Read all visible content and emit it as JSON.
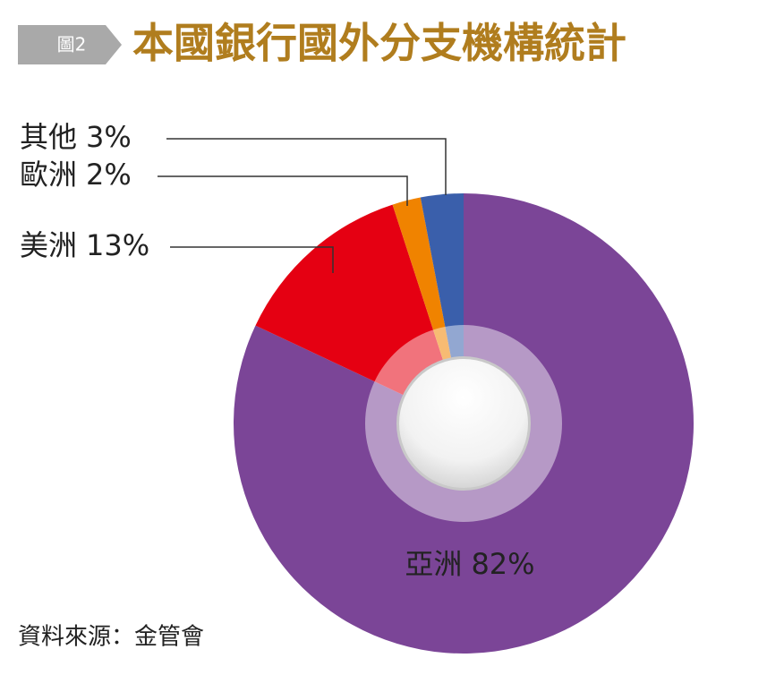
{
  "badge": "圖2",
  "source": "資料來源：金管會",
  "chart_data": {
    "type": "pie",
    "title": "本國銀行國外分支機構統計",
    "categories": [
      "亞洲",
      "美洲",
      "歐洲",
      "其他"
    ],
    "values": [
      82,
      13,
      2,
      3
    ],
    "value_labels": [
      "82%",
      "13%",
      "2%",
      "3%"
    ],
    "colors": [
      "#7b4597",
      "#e50012",
      "#f08300",
      "#3a5fab"
    ]
  }
}
